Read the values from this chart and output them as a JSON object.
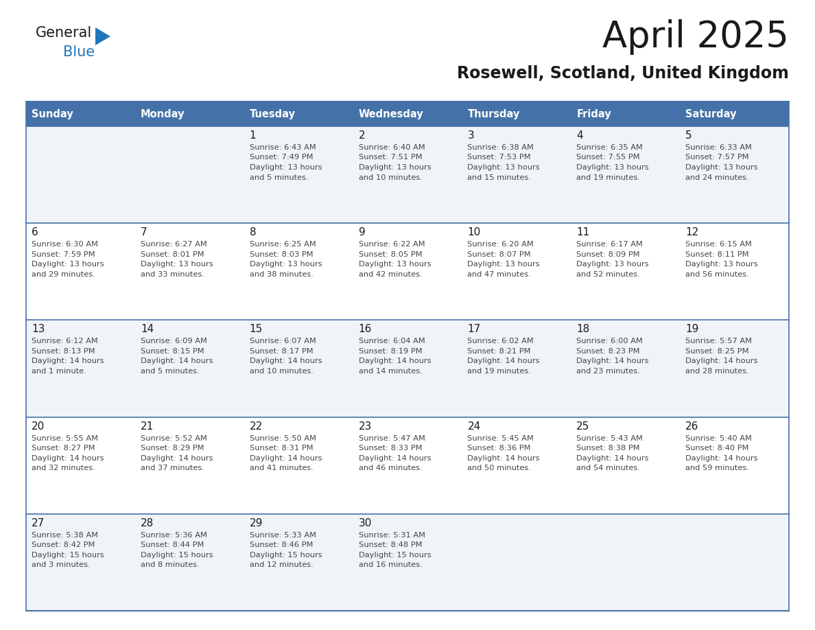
{
  "title": "April 2025",
  "subtitle": "Rosewell, Scotland, United Kingdom",
  "header_bg_color": "#4472A8",
  "header_text_color": "#FFFFFF",
  "row_even_color": "#F0F4F8",
  "row_odd_color": "#FFFFFF",
  "border_color": "#4472A8",
  "day_headers": [
    "Sunday",
    "Monday",
    "Tuesday",
    "Wednesday",
    "Thursday",
    "Friday",
    "Saturday"
  ],
  "title_color": "#1a1a1a",
  "subtitle_color": "#1a1a1a",
  "cell_text_color": "#444444",
  "day_num_color": "#1a1a1a",
  "logo_text_color": "#1a1a1a",
  "logo_blue_color": "#2277BB",
  "logo_triangle_color": "#2277BB",
  "calendar_data": [
    [
      {
        "day": "",
        "lines": []
      },
      {
        "day": "",
        "lines": []
      },
      {
        "day": "1",
        "lines": [
          "Sunrise: 6:43 AM",
          "Sunset: 7:49 PM",
          "Daylight: 13 hours",
          "and 5 minutes."
        ]
      },
      {
        "day": "2",
        "lines": [
          "Sunrise: 6:40 AM",
          "Sunset: 7:51 PM",
          "Daylight: 13 hours",
          "and 10 minutes."
        ]
      },
      {
        "day": "3",
        "lines": [
          "Sunrise: 6:38 AM",
          "Sunset: 7:53 PM",
          "Daylight: 13 hours",
          "and 15 minutes."
        ]
      },
      {
        "day": "4",
        "lines": [
          "Sunrise: 6:35 AM",
          "Sunset: 7:55 PM",
          "Daylight: 13 hours",
          "and 19 minutes."
        ]
      },
      {
        "day": "5",
        "lines": [
          "Sunrise: 6:33 AM",
          "Sunset: 7:57 PM",
          "Daylight: 13 hours",
          "and 24 minutes."
        ]
      }
    ],
    [
      {
        "day": "6",
        "lines": [
          "Sunrise: 6:30 AM",
          "Sunset: 7:59 PM",
          "Daylight: 13 hours",
          "and 29 minutes."
        ]
      },
      {
        "day": "7",
        "lines": [
          "Sunrise: 6:27 AM",
          "Sunset: 8:01 PM",
          "Daylight: 13 hours",
          "and 33 minutes."
        ]
      },
      {
        "day": "8",
        "lines": [
          "Sunrise: 6:25 AM",
          "Sunset: 8:03 PM",
          "Daylight: 13 hours",
          "and 38 minutes."
        ]
      },
      {
        "day": "9",
        "lines": [
          "Sunrise: 6:22 AM",
          "Sunset: 8:05 PM",
          "Daylight: 13 hours",
          "and 42 minutes."
        ]
      },
      {
        "day": "10",
        "lines": [
          "Sunrise: 6:20 AM",
          "Sunset: 8:07 PM",
          "Daylight: 13 hours",
          "and 47 minutes."
        ]
      },
      {
        "day": "11",
        "lines": [
          "Sunrise: 6:17 AM",
          "Sunset: 8:09 PM",
          "Daylight: 13 hours",
          "and 52 minutes."
        ]
      },
      {
        "day": "12",
        "lines": [
          "Sunrise: 6:15 AM",
          "Sunset: 8:11 PM",
          "Daylight: 13 hours",
          "and 56 minutes."
        ]
      }
    ],
    [
      {
        "day": "13",
        "lines": [
          "Sunrise: 6:12 AM",
          "Sunset: 8:13 PM",
          "Daylight: 14 hours",
          "and 1 minute."
        ]
      },
      {
        "day": "14",
        "lines": [
          "Sunrise: 6:09 AM",
          "Sunset: 8:15 PM",
          "Daylight: 14 hours",
          "and 5 minutes."
        ]
      },
      {
        "day": "15",
        "lines": [
          "Sunrise: 6:07 AM",
          "Sunset: 8:17 PM",
          "Daylight: 14 hours",
          "and 10 minutes."
        ]
      },
      {
        "day": "16",
        "lines": [
          "Sunrise: 6:04 AM",
          "Sunset: 8:19 PM",
          "Daylight: 14 hours",
          "and 14 minutes."
        ]
      },
      {
        "day": "17",
        "lines": [
          "Sunrise: 6:02 AM",
          "Sunset: 8:21 PM",
          "Daylight: 14 hours",
          "and 19 minutes."
        ]
      },
      {
        "day": "18",
        "lines": [
          "Sunrise: 6:00 AM",
          "Sunset: 8:23 PM",
          "Daylight: 14 hours",
          "and 23 minutes."
        ]
      },
      {
        "day": "19",
        "lines": [
          "Sunrise: 5:57 AM",
          "Sunset: 8:25 PM",
          "Daylight: 14 hours",
          "and 28 minutes."
        ]
      }
    ],
    [
      {
        "day": "20",
        "lines": [
          "Sunrise: 5:55 AM",
          "Sunset: 8:27 PM",
          "Daylight: 14 hours",
          "and 32 minutes."
        ]
      },
      {
        "day": "21",
        "lines": [
          "Sunrise: 5:52 AM",
          "Sunset: 8:29 PM",
          "Daylight: 14 hours",
          "and 37 minutes."
        ]
      },
      {
        "day": "22",
        "lines": [
          "Sunrise: 5:50 AM",
          "Sunset: 8:31 PM",
          "Daylight: 14 hours",
          "and 41 minutes."
        ]
      },
      {
        "day": "23",
        "lines": [
          "Sunrise: 5:47 AM",
          "Sunset: 8:33 PM",
          "Daylight: 14 hours",
          "and 46 minutes."
        ]
      },
      {
        "day": "24",
        "lines": [
          "Sunrise: 5:45 AM",
          "Sunset: 8:36 PM",
          "Daylight: 14 hours",
          "and 50 minutes."
        ]
      },
      {
        "day": "25",
        "lines": [
          "Sunrise: 5:43 AM",
          "Sunset: 8:38 PM",
          "Daylight: 14 hours",
          "and 54 minutes."
        ]
      },
      {
        "day": "26",
        "lines": [
          "Sunrise: 5:40 AM",
          "Sunset: 8:40 PM",
          "Daylight: 14 hours",
          "and 59 minutes."
        ]
      }
    ],
    [
      {
        "day": "27",
        "lines": [
          "Sunrise: 5:38 AM",
          "Sunset: 8:42 PM",
          "Daylight: 15 hours",
          "and 3 minutes."
        ]
      },
      {
        "day": "28",
        "lines": [
          "Sunrise: 5:36 AM",
          "Sunset: 8:44 PM",
          "Daylight: 15 hours",
          "and 8 minutes."
        ]
      },
      {
        "day": "29",
        "lines": [
          "Sunrise: 5:33 AM",
          "Sunset: 8:46 PM",
          "Daylight: 15 hours",
          "and 12 minutes."
        ]
      },
      {
        "day": "30",
        "lines": [
          "Sunrise: 5:31 AM",
          "Sunset: 8:48 PM",
          "Daylight: 15 hours",
          "and 16 minutes."
        ]
      },
      {
        "day": "",
        "lines": []
      },
      {
        "day": "",
        "lines": []
      },
      {
        "day": "",
        "lines": []
      }
    ]
  ]
}
